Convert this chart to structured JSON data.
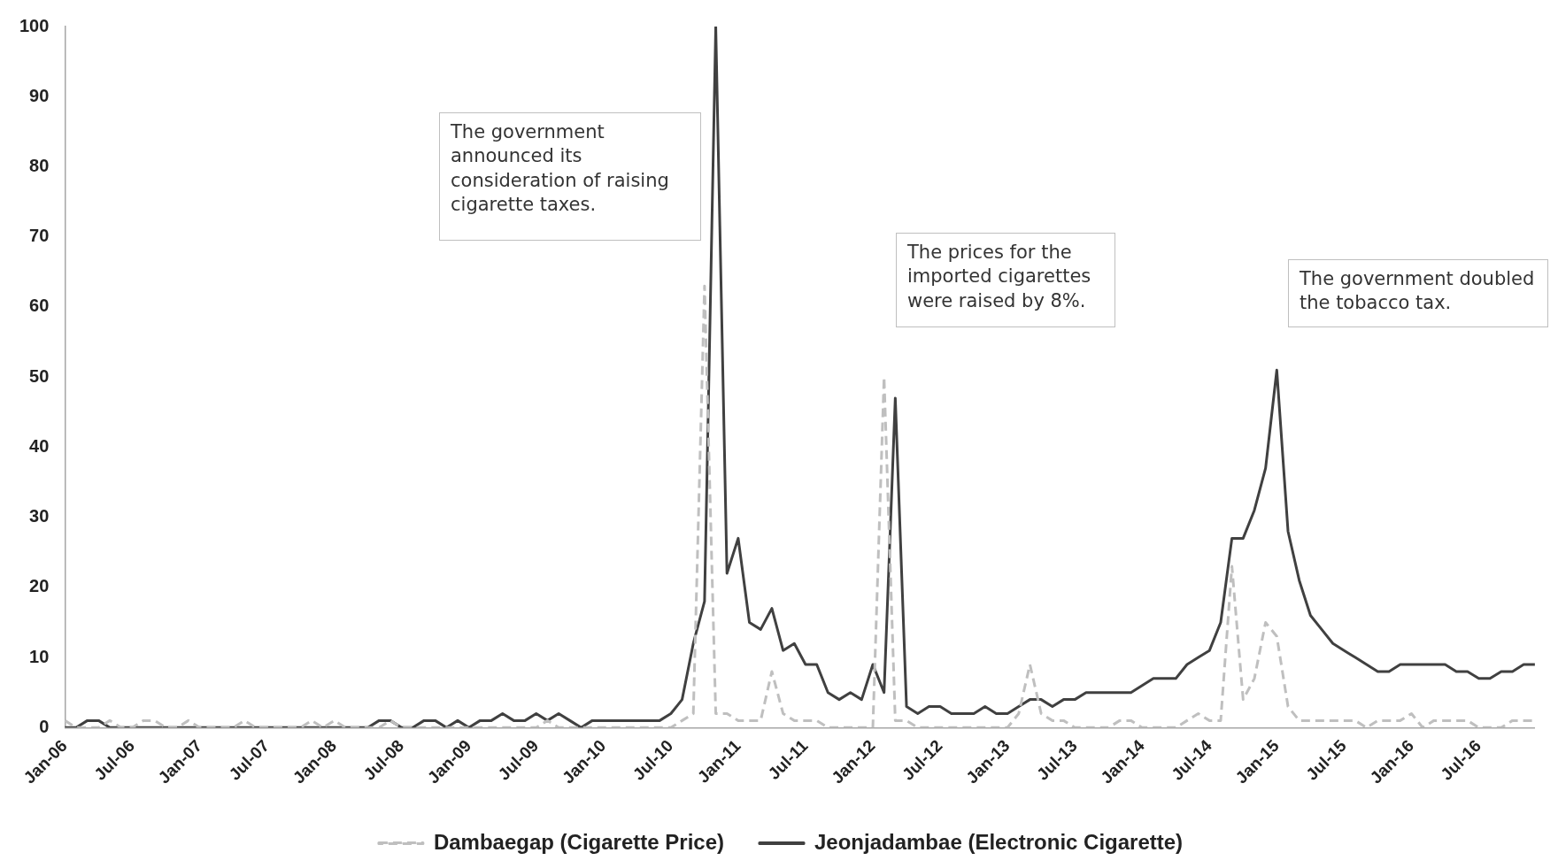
{
  "chart_data": {
    "type": "line",
    "categories": [
      "Jan-06",
      null,
      null,
      null,
      null,
      null,
      "Jul-06",
      null,
      null,
      null,
      null,
      null,
      "Jan-07",
      null,
      null,
      null,
      null,
      null,
      "Jul-07",
      null,
      null,
      null,
      null,
      null,
      "Jan-08",
      null,
      null,
      null,
      null,
      null,
      "Jul-08",
      null,
      null,
      null,
      null,
      null,
      "Jan-09",
      null,
      null,
      null,
      null,
      null,
      "Jul-09",
      null,
      null,
      null,
      null,
      null,
      "Jan-10",
      null,
      null,
      null,
      null,
      null,
      "Jul-10",
      null,
      null,
      null,
      null,
      null,
      "Jan-11",
      null,
      null,
      null,
      null,
      null,
      "Jul-11",
      null,
      null,
      null,
      null,
      null,
      "Jan-12",
      null,
      null,
      null,
      null,
      null,
      "Jul-12",
      null,
      null,
      null,
      null,
      null,
      "Jan-13",
      null,
      null,
      null,
      null,
      null,
      "Jul-13",
      null,
      null,
      null,
      null,
      null,
      "Jan-14",
      null,
      null,
      null,
      null,
      null,
      "Jul-14",
      null,
      null,
      null,
      null,
      null,
      "Jan-15",
      null,
      null,
      null,
      null,
      null,
      "Jul-15",
      null,
      null,
      null,
      null,
      null,
      "Jan-16",
      null,
      null,
      null,
      null,
      null,
      "Jul-16",
      null,
      null,
      null,
      null,
      null
    ],
    "series": [
      {
        "name": "Dambaegap (Cigarette Price)",
        "color": "#bfbfbf",
        "line_style": "dashed",
        "values": [
          1,
          0,
          0,
          0,
          1,
          0,
          0,
          1,
          1,
          0,
          0,
          1,
          0,
          0,
          0,
          0,
          1,
          0,
          0,
          0,
          0,
          0,
          1,
          0,
          1,
          0,
          0,
          0,
          0,
          1,
          0,
          0,
          0,
          0,
          0,
          0,
          0,
          0,
          0,
          0,
          0,
          0,
          0,
          1,
          0,
          0,
          0,
          0,
          0,
          0,
          0,
          0,
          0,
          0,
          0,
          1,
          2,
          63,
          2,
          2,
          1,
          1,
          1,
          8,
          2,
          1,
          1,
          1,
          0,
          0,
          0,
          0,
          0,
          50,
          1,
          1,
          0,
          0,
          0,
          0,
          0,
          0,
          0,
          0,
          0,
          2,
          9,
          2,
          1,
          1,
          0,
          0,
          0,
          0,
          1,
          1,
          0,
          0,
          0,
          0,
          1,
          2,
          1,
          1,
          23,
          4,
          7,
          15,
          13,
          3,
          1,
          1,
          1,
          1,
          1,
          1,
          0,
          1,
          1,
          1,
          2,
          0,
          1,
          1,
          1,
          1,
          0,
          0,
          0,
          1,
          1,
          1
        ]
      },
      {
        "name": "Jeonjadambae (Electronic Cigarette)",
        "color": "#404040",
        "line_style": "solid",
        "values": [
          0,
          0,
          1,
          1,
          0,
          0,
          0,
          0,
          0,
          0,
          0,
          0,
          0,
          0,
          0,
          0,
          0,
          0,
          0,
          0,
          0,
          0,
          0,
          0,
          0,
          0,
          0,
          0,
          1,
          1,
          0,
          0,
          1,
          1,
          0,
          1,
          0,
          1,
          1,
          2,
          1,
          1,
          2,
          1,
          2,
          1,
          0,
          1,
          1,
          1,
          1,
          1,
          1,
          1,
          2,
          4,
          12,
          18,
          100,
          22,
          27,
          15,
          14,
          17,
          11,
          12,
          9,
          9,
          5,
          4,
          5,
          4,
          9,
          5,
          47,
          3,
          2,
          3,
          3,
          2,
          2,
          2,
          3,
          2,
          2,
          3,
          4,
          4,
          3,
          4,
          4,
          5,
          5,
          5,
          5,
          5,
          6,
          7,
          7,
          7,
          9,
          10,
          11,
          15,
          27,
          27,
          31,
          37,
          51,
          28,
          21,
          16,
          14,
          12,
          11,
          10,
          9,
          8,
          8,
          9,
          9,
          9,
          9,
          9,
          8,
          8,
          7,
          7,
          8,
          8,
          9,
          9
        ]
      }
    ],
    "ylim": [
      0,
      100
    ],
    "yticks": [
      0,
      10,
      20,
      30,
      40,
      50,
      60,
      70,
      80,
      90,
      100
    ],
    "marker": "none",
    "legend": "bottom",
    "annotations": [
      "The government announced its consideration of raising cigarette taxes.",
      "The prices for the imported cigarettes were raised by 8%.",
      "The government doubled the tobacco tax."
    ]
  }
}
